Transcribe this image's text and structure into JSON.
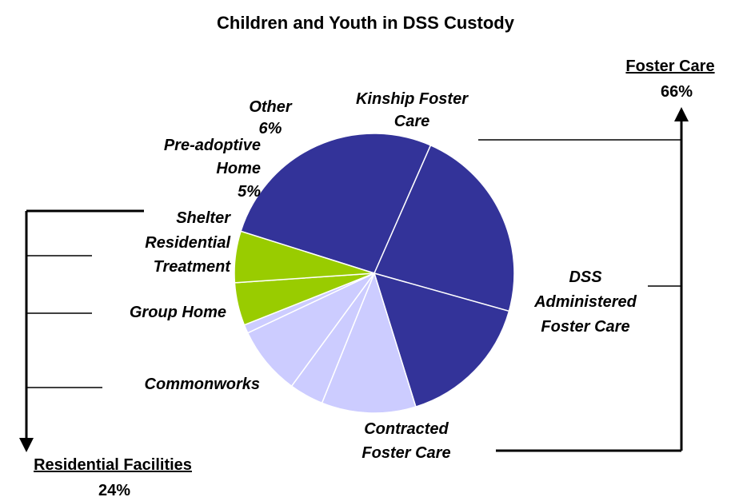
{
  "chart_data": {
    "type": "pie",
    "title": "Children and Youth in DSS Custody",
    "slices": [
      {
        "label": "Kinship Foster Care",
        "value": 27,
        "color": "#333399",
        "display": [
          "Kinship Foster",
          "Care"
        ]
      },
      {
        "label": "DSS Administered Foster Care",
        "value": 23,
        "color": "#333399",
        "display": [
          "DSS",
          "Administered",
          "Foster Care"
        ]
      },
      {
        "label": "Contracted Foster Care",
        "value": 16,
        "color": "#333399",
        "display": [
          "Contracted",
          "Foster Care"
        ]
      },
      {
        "label": "Commonworks",
        "value": 11,
        "color": "#ccccff",
        "display": [
          "Commonworks"
        ]
      },
      {
        "label": "Group Home",
        "value": 4,
        "color": "#ccccff",
        "display": [
          "Group Home"
        ]
      },
      {
        "label": "Residential Treatment",
        "value": 8,
        "color": "#ccccff",
        "display": [
          "Residential",
          "Treatment"
        ]
      },
      {
        "label": "Shelter",
        "value": 1,
        "color": "#ccccff",
        "display": [
          "Shelter"
        ]
      },
      {
        "label": "Pre-adoptive Home",
        "value": 5,
        "color": "#99cc00",
        "display": [
          "Pre-adoptive",
          "Home",
          "5%"
        ]
      },
      {
        "label": "Other",
        "value": 6,
        "color": "#99cc00",
        "display": [
          "Other",
          "6%"
        ]
      }
    ],
    "groups": [
      {
        "label": "Foster Care",
        "value": "66%"
      },
      {
        "label": "Residential Facilities",
        "value": "24%"
      }
    ]
  }
}
